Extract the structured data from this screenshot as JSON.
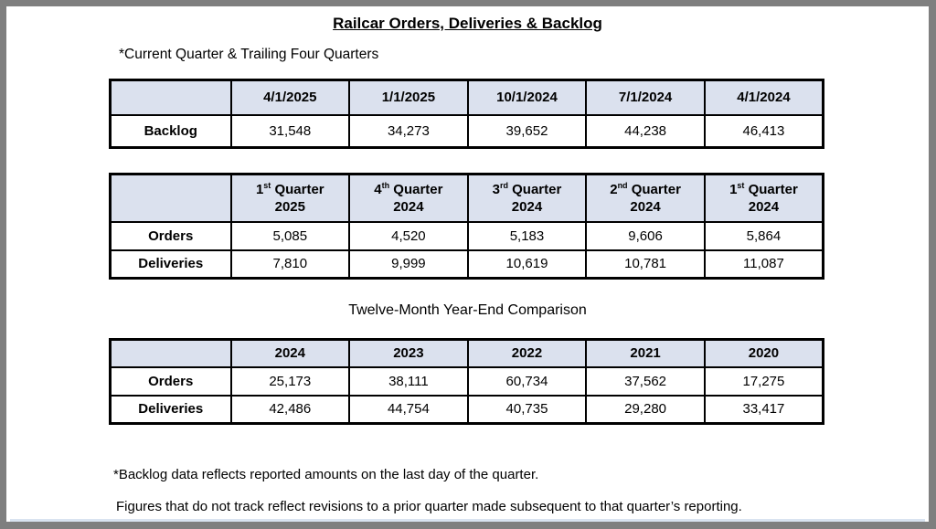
{
  "page": {
    "title": "Railcar Orders, Deliveries & Backlog",
    "subtitle": "*Current Quarter & Trailing Four Quarters",
    "section2_title": "Twelve-Month Year-End Comparison",
    "footnote1": "*Backlog data reflects reported amounts on the last day of the quarter.",
    "footnote2": "Figures that do not track reflect revisions to a prior quarter made subsequent to that quarter’s reporting."
  },
  "colors": {
    "header_fill": "#dbe1ee",
    "table_border": "#000000",
    "frame": "#7f7f7f",
    "page_background": "#ffffff"
  },
  "backlog_table": {
    "headers": [
      "",
      "4/1/2025",
      "1/1/2025",
      "10/1/2024",
      "7/1/2024",
      "4/1/2024"
    ],
    "rows": [
      {
        "label": "Backlog",
        "values": [
          "31,548",
          "34,273",
          "39,652",
          "44,238",
          "46,413"
        ]
      }
    ]
  },
  "quarters_table": {
    "headers": [
      {
        "num": "1",
        "sup": "st",
        "rest": " Quarter",
        "year": "2025"
      },
      {
        "num": "4",
        "sup": "th",
        "rest": " Quarter",
        "year": "2024"
      },
      {
        "num": "3",
        "sup": "rd",
        "rest": " Quarter",
        "year": "2024"
      },
      {
        "num": "2",
        "sup": "nd",
        "rest": " Quarter",
        "year": "2024"
      },
      {
        "num": "1",
        "sup": "st",
        "rest": " Quarter",
        "year": "2024"
      }
    ],
    "rows": [
      {
        "label": "Orders",
        "values": [
          "5,085",
          "4,520",
          "5,183",
          "9,606",
          "5,864"
        ]
      },
      {
        "label": "Deliveries",
        "values": [
          "7,810",
          "9,999",
          "10,619",
          "10,781",
          "11,087"
        ]
      }
    ]
  },
  "yearend_table": {
    "headers": [
      "",
      "2024",
      "2023",
      "2022",
      "2021",
      "2020"
    ],
    "rows": [
      {
        "label": "Orders",
        "values": [
          "25,173",
          "38,111",
          "60,734",
          "37,562",
          "17,275"
        ]
      },
      {
        "label": "Deliveries",
        "values": [
          "42,486",
          "44,754",
          "40,735",
          "29,280",
          "33,417"
        ]
      }
    ]
  }
}
